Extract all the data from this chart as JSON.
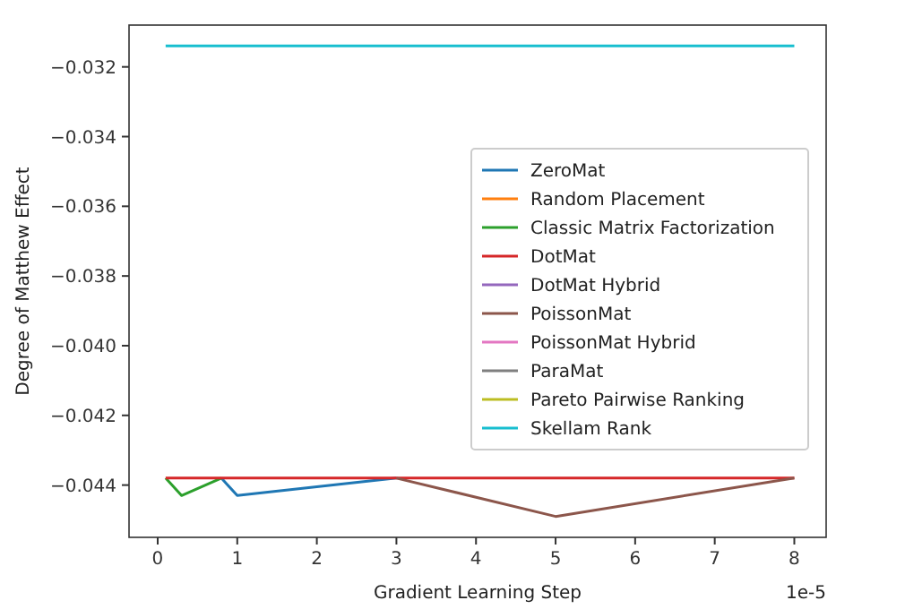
{
  "chart_data": {
    "type": "line",
    "xlabel": "Gradient Learning Step",
    "ylabel": "Degree of Matthew Effect",
    "annotations": [
      "1e-5"
    ],
    "x": [
      0.1,
      0.3,
      0.8,
      1,
      3,
      5,
      8
    ],
    "series": [
      {
        "name": "ZeroMat",
        "color": "#1f77b4",
        "values": [
          null,
          null,
          -0.0438,
          -0.0443,
          -0.0438,
          null,
          null
        ]
      },
      {
        "name": "Random Placement",
        "color": "#ff7f0e",
        "values": [
          null,
          null,
          null,
          null,
          null,
          null,
          null
        ]
      },
      {
        "name": "Classic Matrix Factorization",
        "color": "#2ca02c",
        "values": [
          -0.0438,
          -0.0443,
          -0.0438,
          null,
          null,
          null,
          null
        ]
      },
      {
        "name": "DotMat",
        "color": "#d62728",
        "values": [
          -0.0438,
          -0.0438,
          -0.0438,
          -0.0438,
          -0.0438,
          -0.0438,
          -0.0438
        ]
      },
      {
        "name": "DotMat Hybrid",
        "color": "#9467bd",
        "values": [
          null,
          null,
          null,
          null,
          null,
          null,
          null
        ]
      },
      {
        "name": "PoissonMat",
        "color": "#8c564b",
        "values": [
          null,
          null,
          null,
          null,
          -0.0438,
          -0.0449,
          -0.0438
        ]
      },
      {
        "name": "PoissonMat Hybrid",
        "color": "#e377c2",
        "values": [
          null,
          null,
          null,
          null,
          null,
          null,
          null
        ]
      },
      {
        "name": "ParaMat",
        "color": "#7f7f7f",
        "values": [
          null,
          null,
          null,
          null,
          null,
          null,
          null
        ]
      },
      {
        "name": "Pareto Pairwise Ranking",
        "color": "#bcbd22",
        "values": [
          null,
          null,
          null,
          null,
          null,
          null,
          null
        ]
      },
      {
        "name": "Skellam Rank",
        "color": "#17becf",
        "values": [
          -0.0314,
          -0.0314,
          -0.0314,
          -0.0314,
          -0.0314,
          -0.0314,
          -0.0314
        ]
      }
    ],
    "xlim": [
      -0.36,
      8.4
    ],
    "xticks": [
      0,
      1,
      2,
      3,
      4,
      5,
      6,
      7,
      8
    ],
    "ylim": [
      -0.0455,
      -0.0308
    ],
    "yticks": [
      {
        "value": -0.044,
        "label": "−0.044"
      },
      {
        "value": -0.042,
        "label": "−0.042"
      },
      {
        "value": -0.04,
        "label": "−0.040"
      },
      {
        "value": -0.038,
        "label": "−0.038"
      },
      {
        "value": -0.036,
        "label": "−0.036"
      },
      {
        "value": -0.034,
        "label": "−0.034"
      },
      {
        "value": -0.032,
        "label": "−0.032"
      }
    ],
    "grid": false,
    "legend": "right",
    "marker": "none",
    "line_style": "solid"
  }
}
